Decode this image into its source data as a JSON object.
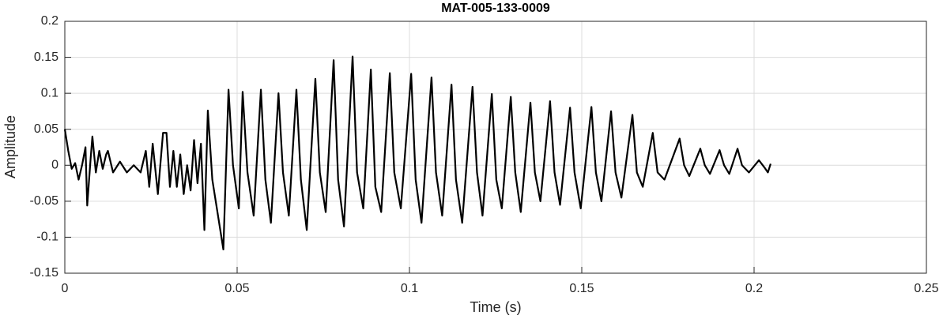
{
  "chart_data": {
    "type": "line",
    "title": "MAT-005-133-0009",
    "x_label": "Time (s)",
    "y_label": "Amplitude",
    "x": [
      0,
      0.001,
      0.002,
      0.003,
      0.004,
      0.005,
      0.006,
      0.0065,
      0.0075,
      0.008,
      0.009,
      0.0095,
      0.01,
      0.011,
      0.012,
      0.0125,
      0.014,
      0.016,
      0.018,
      0.02,
      0.022,
      0.0235,
      0.0245,
      0.0255,
      0.027,
      0.0285,
      0.0295,
      0.0305,
      0.0315,
      0.0325,
      0.0335,
      0.0345,
      0.0355,
      0.0365,
      0.0375,
      0.0385,
      0.0395,
      0.0405,
      0.0415,
      0.0428,
      0.046,
      0.0475,
      0.0488,
      0.0505,
      0.0516,
      0.053,
      0.0548,
      0.0569,
      0.0582,
      0.0598,
      0.062,
      0.0633,
      0.065,
      0.0672,
      0.0685,
      0.0702,
      0.0727,
      0.074,
      0.0757,
      0.078,
      0.0793,
      0.081,
      0.0835,
      0.0848,
      0.0866,
      0.0888,
      0.0901,
      0.0918,
      0.0943,
      0.0956,
      0.0975,
      0.1005,
      0.1018,
      0.1035,
      0.1064,
      0.1077,
      0.1095,
      0.1122,
      0.1135,
      0.1153,
      0.1183,
      0.1196,
      0.1212,
      0.1239,
      0.1252,
      0.1268,
      0.1294,
      0.1307,
      0.1323,
      0.1351,
      0.1364,
      0.138,
      0.1408,
      0.1421,
      0.1437,
      0.1466,
      0.1479,
      0.1497,
      0.1528,
      0.1541,
      0.1557,
      0.1585,
      0.1598,
      0.1615,
      0.1647,
      0.166,
      0.1677,
      0.1706,
      0.172,
      0.174,
      0.1784,
      0.1797,
      0.1812,
      0.1844,
      0.1857,
      0.1872,
      0.19,
      0.1913,
      0.1928,
      0.1952,
      0.1965,
      0.1985,
      0.2014,
      0.203,
      0.204,
      0.2048
    ],
    "series": [
      {
        "color": "#000000",
        "values": [
          0.05,
          0.02,
          -0.005,
          0.003,
          -0.02,
          0,
          0.025,
          -0.056,
          0.01,
          0.04,
          -0.01,
          0.005,
          0.02,
          -0.005,
          0.015,
          0.02,
          -0.01,
          0.005,
          -0.01,
          0,
          -0.01,
          0.02,
          -0.03,
          0.03,
          -0.04,
          0.045,
          0.045,
          -0.03,
          0.02,
          -0.03,
          0.015,
          -0.04,
          0,
          -0.035,
          0.035,
          -0.025,
          0.03,
          -0.09,
          0.076,
          -0.02,
          -0.117,
          0.105,
          0,
          -0.06,
          0.102,
          -0.01,
          -0.07,
          0.105,
          -0.02,
          -0.08,
          0.1,
          -0.01,
          -0.07,
          0.105,
          -0.02,
          -0.09,
          0.12,
          -0.01,
          -0.065,
          0.146,
          -0.02,
          -0.085,
          0.151,
          -0.01,
          -0.06,
          0.133,
          -0.03,
          -0.065,
          0.128,
          -0.01,
          -0.06,
          0.127,
          -0.02,
          -0.08,
          0.122,
          -0.01,
          -0.07,
          0.112,
          -0.02,
          -0.08,
          0.109,
          -0.01,
          -0.07,
          0.099,
          -0.02,
          -0.06,
          0.095,
          -0.01,
          -0.065,
          0.087,
          -0.01,
          -0.05,
          0.089,
          -0.01,
          -0.055,
          0.08,
          -0.01,
          -0.06,
          0.081,
          -0.01,
          -0.05,
          0.075,
          -0.01,
          -0.045,
          0.07,
          -0.01,
          -0.03,
          0.045,
          -0.01,
          -0.02,
          0.037,
          0,
          -0.015,
          0.023,
          0,
          -0.012,
          0.021,
          0,
          -0.012,
          0.023,
          0,
          -0.01,
          0.007,
          -0.003,
          -0.01,
          0.002
        ]
      }
    ],
    "xlim": [
      0,
      0.25
    ],
    "xticks": [
      0,
      0.05,
      0.1,
      0.15,
      0.2,
      0.25
    ],
    "ylim": [
      -0.15,
      0.2
    ],
    "yticks": [
      -0.15,
      -0.1,
      -0.05,
      0,
      0.05,
      0.1,
      0.15,
      0.2
    ],
    "grid": true
  }
}
